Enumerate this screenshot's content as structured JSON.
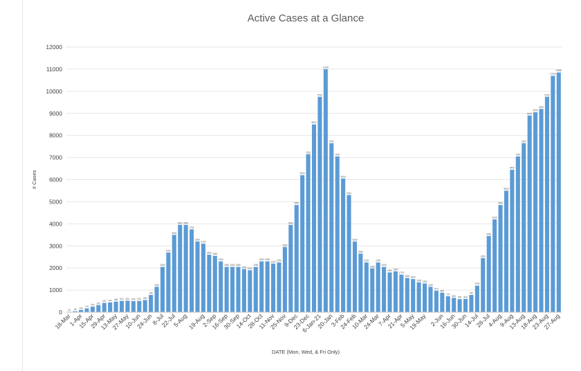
{
  "chart_data": {
    "type": "bar",
    "title": "Active Cases at a Glance",
    "xlabel": "DATE  (Mon, Wed, & Fri Only)",
    "ylabel": "# Cases",
    "ylim": [
      0,
      12000
    ],
    "ytick_step": 1000,
    "grid": true,
    "color": "#5b9bd5",
    "x_tick_labels": [
      "18-Mar",
      "1-Apr",
      "15-Apr",
      "29-Apr",
      "13-May",
      "27-May",
      "10-Jun",
      "24-Jun",
      "8-Jul",
      "22-Jul",
      "5-Aug",
      "19-Aug",
      "2-Sep",
      "16-Sep",
      "30-Sep",
      "14-Oct",
      "28-Oct",
      "11-Nov",
      "25-Nov",
      "9-Dec",
      "23-Dec",
      "6-Jan-21",
      "20-Jan",
      "3-Feb",
      "24-Feb",
      "10-Mar",
      "24-Mar",
      "7-Apr",
      "21-Apr",
      "5-May",
      "19-May",
      "2-Jun",
      "16-Jun",
      "30-Jun",
      "14-Jul",
      "28-Jul",
      "4-Aug",
      "9-Aug",
      "13-Aug",
      "18-Aug",
      "23-Aug",
      "27-Aug"
    ],
    "values": [
      20,
      45,
      100,
      170,
      250,
      320,
      420,
      440,
      480,
      510,
      520,
      500,
      510,
      550,
      780,
      1150,
      2050,
      2700,
      3500,
      3950,
      3950,
      3750,
      3200,
      3100,
      2600,
      2550,
      2300,
      2050,
      2050,
      2050,
      1950,
      1900,
      2050,
      2300,
      2300,
      2200,
      2250,
      2950,
      3950,
      4850,
      6200,
      7150,
      8500,
      9750,
      11000,
      7650,
      7050,
      6050,
      5300,
      3200,
      2650,
      2250,
      1980,
      2250,
      2050,
      1800,
      1850,
      1700,
      1550,
      1500,
      1350,
      1300,
      1150,
      970,
      880,
      720,
      650,
      590,
      600,
      780,
      1200,
      2450,
      3450,
      4200,
      4850,
      5500,
      6450,
      7050,
      7650,
      8900,
      9050,
      9200,
      9750,
      10700,
      10850
    ]
  }
}
